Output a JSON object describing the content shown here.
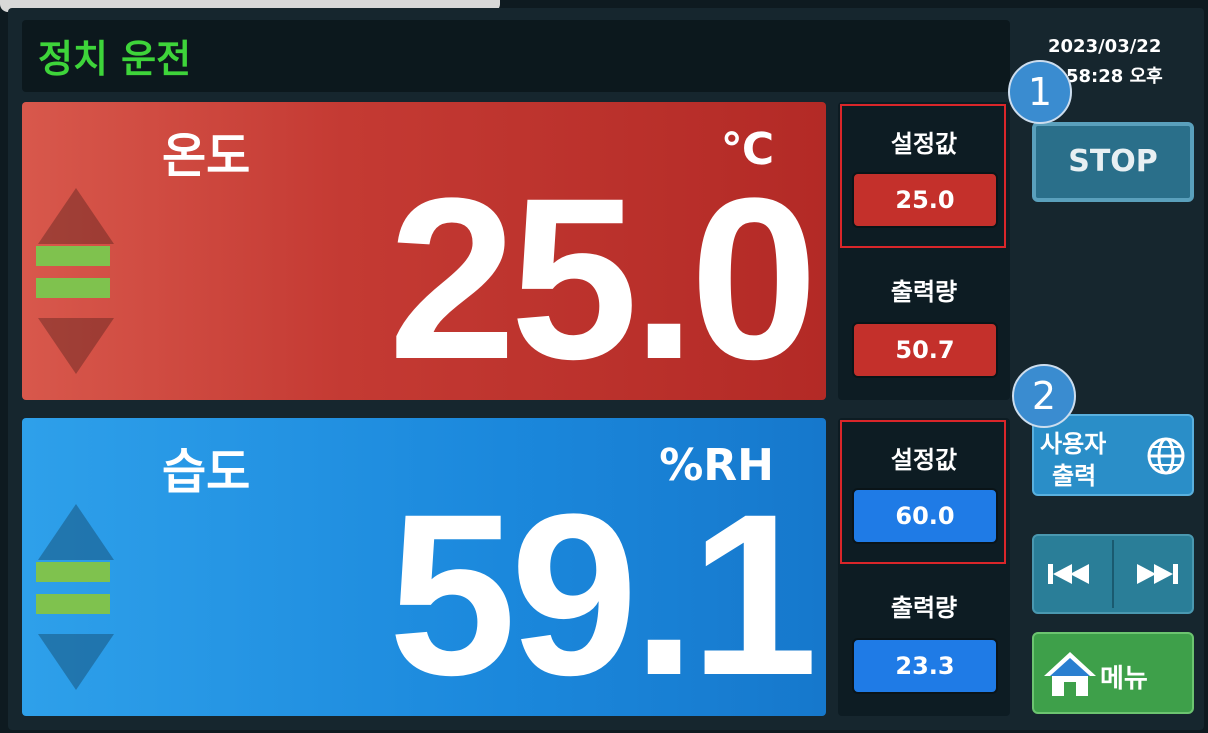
{
  "header": {
    "title": "정치 운전",
    "date": "2023/03/22",
    "time": "58:28 오후"
  },
  "badges": [
    "1",
    "2"
  ],
  "temperature": {
    "label": "온도",
    "unit": "℃",
    "value": "25.0",
    "setpoint_label": "설정값",
    "setpoint": "25.0",
    "output_label": "출력량",
    "output": "50.7"
  },
  "humidity": {
    "label": "습도",
    "unit": "%RH",
    "value": "59.1",
    "setpoint_label": "설정값",
    "setpoint": "60.0",
    "output_label": "출력량",
    "output": "23.3"
  },
  "buttons": {
    "stop": "STOP",
    "user_output": [
      "사용자",
      "출력"
    ],
    "menu": "메뉴"
  }
}
